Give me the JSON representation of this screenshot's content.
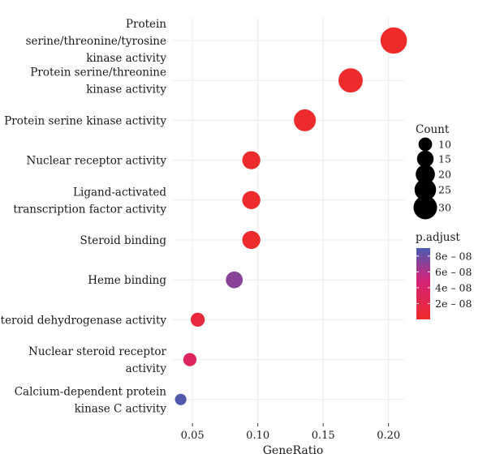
{
  "chart_data": {
    "type": "scatter",
    "xlabel": "GeneRatio",
    "xlim": [
      0.035,
      0.212
    ],
    "xticks": [
      0.05,
      0.1,
      0.15,
      0.2
    ],
    "xtick_labels": [
      "0.05",
      "0.10",
      "0.15",
      "0.20"
    ],
    "grid": true,
    "categories": [
      {
        "label": [
          "Protein",
          "serine/threonine/tyrosine",
          "kinase activity"
        ],
        "gene_ratio": 0.204,
        "count": 32,
        "p_adjust": 5e-10
      },
      {
        "label": [
          "Protein serine/threonine",
          "kinase activity"
        ],
        "gene_ratio": 0.171,
        "count": 27,
        "p_adjust": 1e-09
      },
      {
        "label": [
          "Protein serine kinase activity"
        ],
        "gene_ratio": 0.136,
        "count": 22,
        "p_adjust": 1e-09
      },
      {
        "label": [
          "Nuclear receptor activity"
        ],
        "gene_ratio": 0.095,
        "count": 15,
        "p_adjust": 1e-09
      },
      {
        "label": [
          "Ligand-activated",
          "transcription factor activity"
        ],
        "gene_ratio": 0.095,
        "count": 15,
        "p_adjust": 1e-09
      },
      {
        "label": [
          "Steroid binding"
        ],
        "gene_ratio": 0.095,
        "count": 15,
        "p_adjust": 2e-09
      },
      {
        "label": [
          "Heme binding"
        ],
        "gene_ratio": 0.082,
        "count": 13,
        "p_adjust": 7.2e-08
      },
      {
        "label": [
          "Steroid dehydrogenase activity"
        ],
        "gene_ratio": 0.054,
        "count": 9,
        "p_adjust": 1.2e-08
      },
      {
        "label": [
          "Nuclear steroid receptor",
          "activity"
        ],
        "gene_ratio": 0.048,
        "count": 8,
        "p_adjust": 3.2e-08
      },
      {
        "label": [
          "Calcium-dependent protein",
          "kinase C activity"
        ],
        "gene_ratio": 0.041,
        "count": 6,
        "p_adjust": 8.8e-08
      }
    ],
    "legend_size": {
      "title": "Count",
      "values": [
        10,
        15,
        20,
        25,
        30
      ],
      "labels": [
        "10",
        "15",
        "20",
        "25",
        "30"
      ]
    },
    "legend_color": {
      "title": "p.adjust",
      "range": [
        0,
        9e-08
      ],
      "ticks": [
        8e-08,
        6e-08,
        4e-08,
        2e-08
      ],
      "tick_labels": [
        "8e – 08",
        "6e – 08",
        "4e – 08",
        "2e – 08"
      ],
      "low_color": "#ee2a2a",
      "mid_color": "#d3237a",
      "high_color": "#4a5cb0"
    },
    "legend_position": "right"
  }
}
